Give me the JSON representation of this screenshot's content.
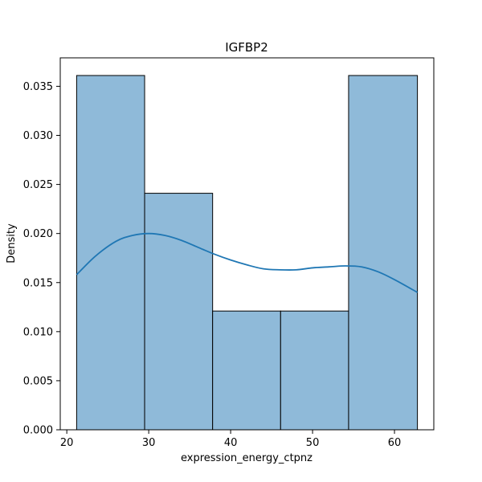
{
  "chart_data": {
    "type": "bar",
    "title": "IGFBP2",
    "xlabel": "expression_energy_ctpnz",
    "ylabel": "Density",
    "xlim": [
      19.2,
      64.8
    ],
    "ylim": [
      0.0,
      0.0379
    ],
    "x_ticks": [
      20,
      30,
      40,
      50,
      60
    ],
    "y_ticks": [
      0.0,
      0.005,
      0.01,
      0.015,
      0.02,
      0.025,
      0.03,
      0.035
    ],
    "x_tick_labels": [
      "20",
      "30",
      "40",
      "50",
      "60"
    ],
    "y_tick_labels": [
      "0.000",
      "0.005",
      "0.010",
      "0.015",
      "0.020",
      "0.025",
      "0.030",
      "0.035"
    ],
    "bins": [
      {
        "x0": 21.2,
        "x1": 29.5,
        "density": 0.0361
      },
      {
        "x0": 29.5,
        "x1": 37.8,
        "density": 0.0241
      },
      {
        "x0": 37.8,
        "x1": 46.1,
        "density": 0.0121
      },
      {
        "x0": 46.1,
        "x1": 54.4,
        "density": 0.0121
      },
      {
        "x0": 54.4,
        "x1": 62.8,
        "density": 0.0361
      }
    ],
    "kde": {
      "x": [
        21.2,
        23.5,
        26.0,
        28.0,
        30.0,
        32.0,
        34.0,
        36.0,
        38.0,
        40.0,
        42.0,
        44.0,
        46.0,
        48.0,
        50.0,
        52.0,
        54.0,
        56.0,
        58.0,
        60.0,
        62.8
      ],
      "y": [
        0.0158,
        0.0177,
        0.0192,
        0.0198,
        0.02,
        0.0198,
        0.0193,
        0.0186,
        0.0179,
        0.0173,
        0.0168,
        0.0164,
        0.0163,
        0.0163,
        0.0165,
        0.0166,
        0.0167,
        0.0166,
        0.0161,
        0.0153,
        0.014
      ]
    },
    "colors": {
      "bar_fill": "#8fbad9",
      "bar_edge": "#000000",
      "kde_line": "#1f77b4"
    },
    "grid": false,
    "legend": "none"
  }
}
